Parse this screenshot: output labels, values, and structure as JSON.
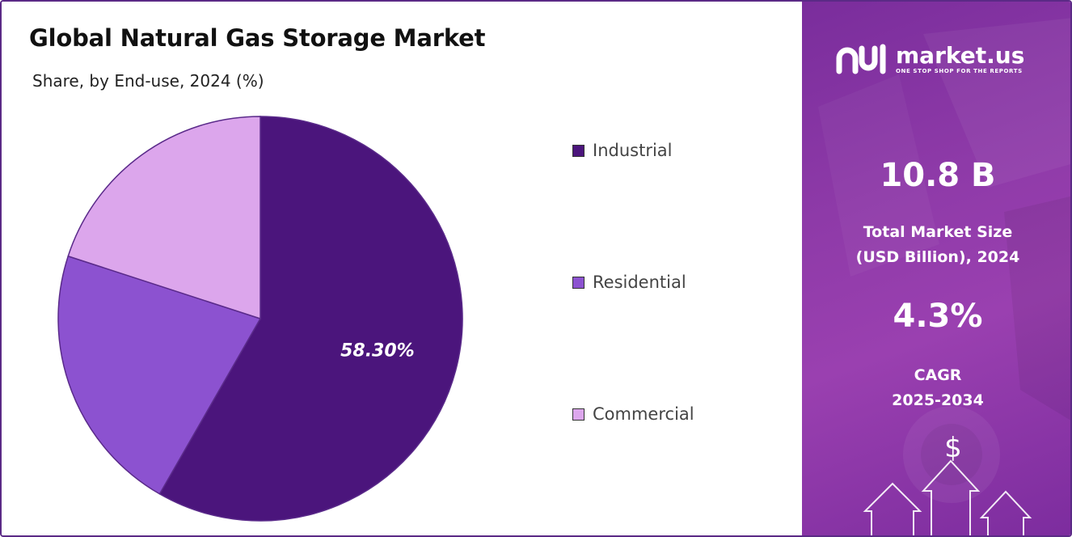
{
  "header": {
    "title": "Global Natural Gas Storage Market",
    "subtitle": "Share, by End-use, 2024 (%)"
  },
  "chart_data": {
    "type": "pie",
    "categories": [
      "Industrial",
      "Residential",
      "Commercial"
    ],
    "values": [
      58.3,
      21.7,
      20.0
    ],
    "colors": [
      "#4b157c",
      "#8c52d0",
      "#dca6ec"
    ],
    "data_labels": [
      "58.30%",
      "",
      ""
    ],
    "legend_position": "right"
  },
  "brand": {
    "name": "market.us",
    "tagline": "ONE STOP SHOP FOR THE REPORTS"
  },
  "stats": {
    "market_size_value": "10.8 B",
    "market_size_label_line1": "Total Market Size",
    "market_size_label_line2": "(USD Billion), 2024",
    "cagr_value": "4.3%",
    "cagr_label_line1": "CAGR",
    "cagr_label_line2": "2025-2034"
  },
  "decor": {
    "dollar_symbol": "$"
  }
}
